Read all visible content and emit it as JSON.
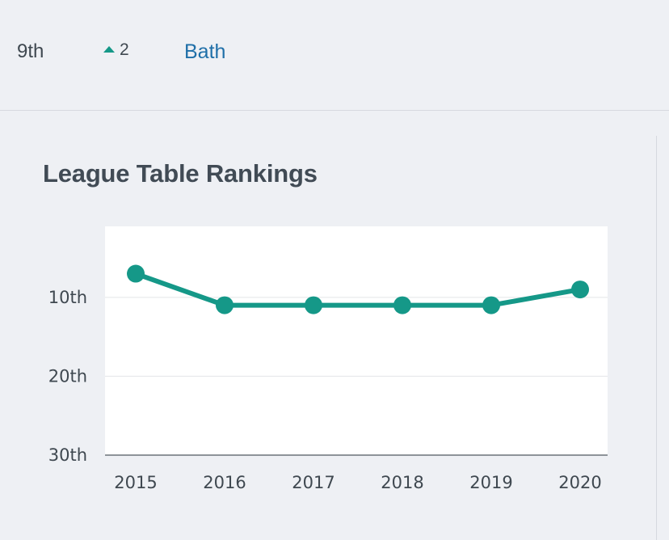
{
  "summary": {
    "rank": "9th",
    "change": "2",
    "university": "Bath"
  },
  "colors": {
    "accent": "#159888",
    "link": "#1f6fa8"
  },
  "icons": {
    "change_direction": "triangle-up-icon"
  },
  "chart_data": {
    "type": "line",
    "title": "League Table Rankings",
    "categories": [
      "2015",
      "2016",
      "2017",
      "2018",
      "2019",
      "2020"
    ],
    "series": [
      {
        "values": [
          7,
          11,
          11,
          11,
          11,
          9
        ]
      }
    ],
    "y_tick_labels": [
      "10th",
      "20th",
      "30th"
    ],
    "y_ticks": [
      10,
      20,
      30
    ],
    "ylim": [
      1,
      30
    ],
    "y_inverted": true,
    "grid": true,
    "legend": "none"
  }
}
